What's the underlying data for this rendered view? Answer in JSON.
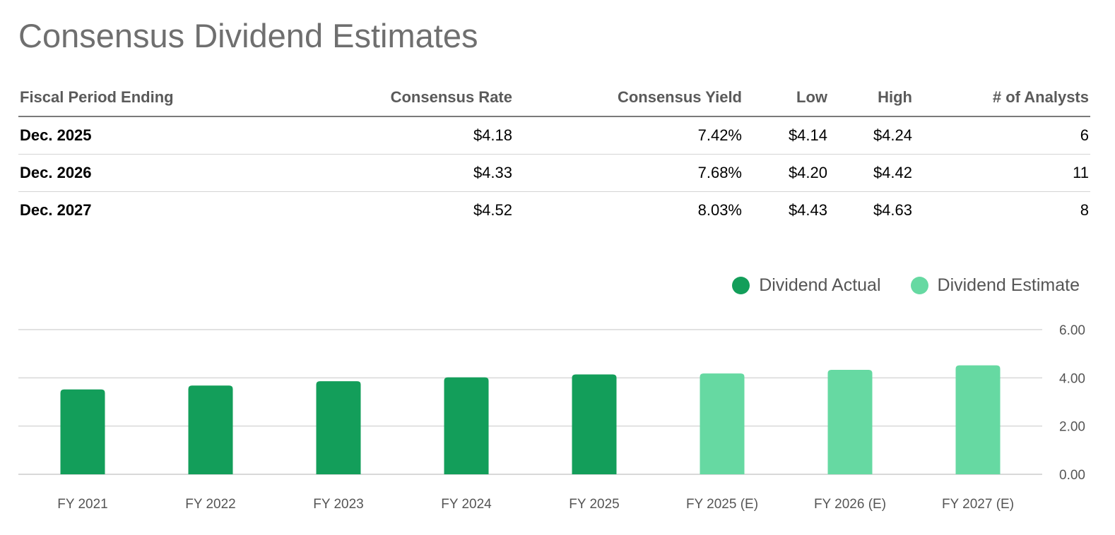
{
  "page": {
    "title": "Consensus Dividend Estimates"
  },
  "table": {
    "headers": [
      "Fiscal Period Ending",
      "Consensus Rate",
      "Consensus Yield",
      "Low",
      "High",
      "# of Analysts"
    ],
    "rows": [
      [
        "Dec. 2025",
        "$4.18",
        "7.42%",
        "$4.14",
        "$4.24",
        "6"
      ],
      [
        "Dec. 2026",
        "$4.33",
        "7.68%",
        "$4.20",
        "$4.42",
        "11"
      ],
      [
        "Dec. 2027",
        "$4.52",
        "8.03%",
        "$4.43",
        "$4.63",
        "8"
      ]
    ]
  },
  "legend": [
    {
      "label": "Dividend Actual",
      "color": "#139e5a"
    },
    {
      "label": "Dividend Estimate",
      "color": "#66d9a2"
    }
  ],
  "chart_data": {
    "type": "bar",
    "categories": [
      "FY 2021",
      "FY 2022",
      "FY 2023",
      "FY 2024",
      "FY 2025",
      "FY 2025 (E)",
      "FY 2026 (E)",
      "FY 2027 (E)"
    ],
    "values": [
      3.52,
      3.68,
      3.86,
      4.02,
      4.14,
      4.18,
      4.33,
      4.52
    ],
    "series_of_bar": [
      "Dividend Actual",
      "Dividend Actual",
      "Dividend Actual",
      "Dividend Actual",
      "Dividend Actual",
      "Dividend Estimate",
      "Dividend Estimate",
      "Dividend Estimate"
    ],
    "ylim": [
      0,
      6
    ],
    "yticks": [
      "0.00",
      "2.00",
      "4.00",
      "6.00"
    ],
    "y_axis_side": "right",
    "grid": true,
    "legend_position": "top-right",
    "colors": {
      "actual": "#139e5a",
      "estimate": "#66d9a2",
      "grid": "#d9d9d9",
      "tick_text": "#555555"
    }
  }
}
